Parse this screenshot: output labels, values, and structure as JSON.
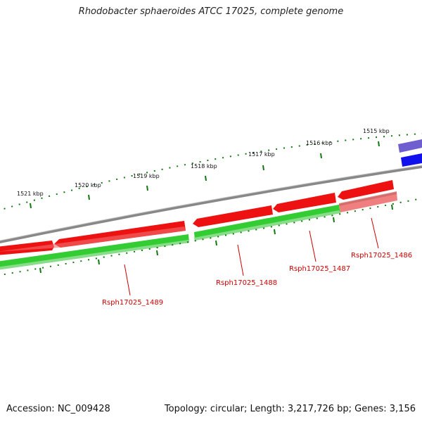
{
  "title": "Rhodobacter sphaeroides ATCC 17025, complete genome",
  "footer": {
    "accession": "Accession: NC_009428",
    "summary": "Topology: circular; Length: 3,217,726 bp; Genes: 3,156"
  },
  "scale": {
    "ticks": [
      "1521 kbp",
      "1520 kbp",
      "1519 kbp",
      "1518 kbp",
      "1517 kbp",
      "1516 kbp",
      "1515 kbp"
    ]
  },
  "genes": {
    "labels": [
      "Rsph17025_1489",
      "Rsph17025_1488",
      "Rsph17025_1487",
      "Rsph17025_1486"
    ]
  },
  "colors": {
    "gene_forward": "#ee1111",
    "gene_highlight": "#f08080",
    "cds_green": "#33cc33",
    "cds_light": "#88dd88",
    "backbone": "#888888",
    "tick_green": "#117711",
    "blue_feature": "#1111ee",
    "purple_feature": "#6655cc",
    "label_red": "#cc0000"
  }
}
